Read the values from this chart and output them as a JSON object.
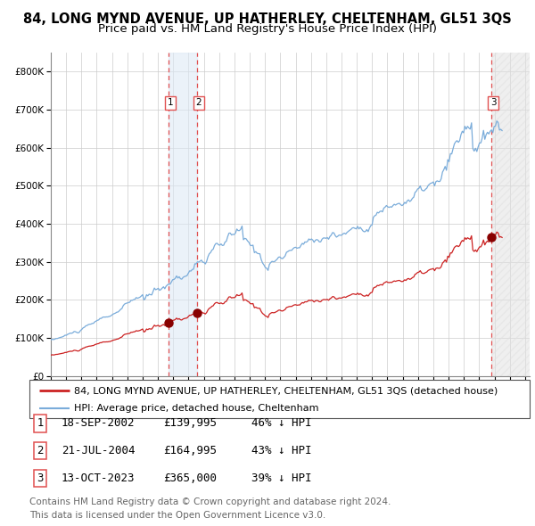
{
  "title": "84, LONG MYND AVENUE, UP HATHERLEY, CHELTENHAM, GL51 3QS",
  "subtitle": "Price paid vs. HM Land Registry's House Price Index (HPI)",
  "ylim": [
    0,
    850000
  ],
  "yticks": [
    0,
    100000,
    200000,
    300000,
    400000,
    500000,
    600000,
    700000,
    800000
  ],
  "ytick_labels": [
    "£0",
    "£100K",
    "£200K",
    "£300K",
    "£400K",
    "£500K",
    "£600K",
    "£700K",
    "£800K"
  ],
  "xlim_start": 1995.0,
  "xlim_end": 2026.3,
  "hpi_color": "#7aacda",
  "price_color": "#cc2222",
  "sale_marker_color": "#880000",
  "dashed_line_color": "#e05050",
  "shade_color": "#dce8f5",
  "grid_color": "#cccccc",
  "background_color": "#ffffff",
  "legend_line1": "84, LONG MYND AVENUE, UP HATHERLEY, CHELTENHAM, GL51 3QS (detached house)",
  "legend_line2": "HPI: Average price, detached house, Cheltenham",
  "sales": [
    {
      "num": 1,
      "date": "18-SEP-2002",
      "price": 139995,
      "price_str": "£139,995",
      "pct": "46% ↓ HPI",
      "year": 2002.71
    },
    {
      "num": 2,
      "date": "21-JUL-2004",
      "price": 164995,
      "price_str": "£164,995",
      "pct": "43% ↓ HPI",
      "year": 2004.55
    },
    {
      "num": 3,
      "date": "13-OCT-2023",
      "price": 365000,
      "price_str": "£365,000",
      "pct": "39% ↓ HPI",
      "year": 2023.79
    }
  ],
  "footer_line1": "Contains HM Land Registry data © Crown copyright and database right 2024.",
  "footer_line2": "This data is licensed under the Open Government Licence v3.0.",
  "title_fontsize": 10.5,
  "subtitle_fontsize": 9.5,
  "tick_fontsize": 7.5,
  "legend_fontsize": 8.5,
  "table_fontsize": 9,
  "footer_fontsize": 7.5
}
